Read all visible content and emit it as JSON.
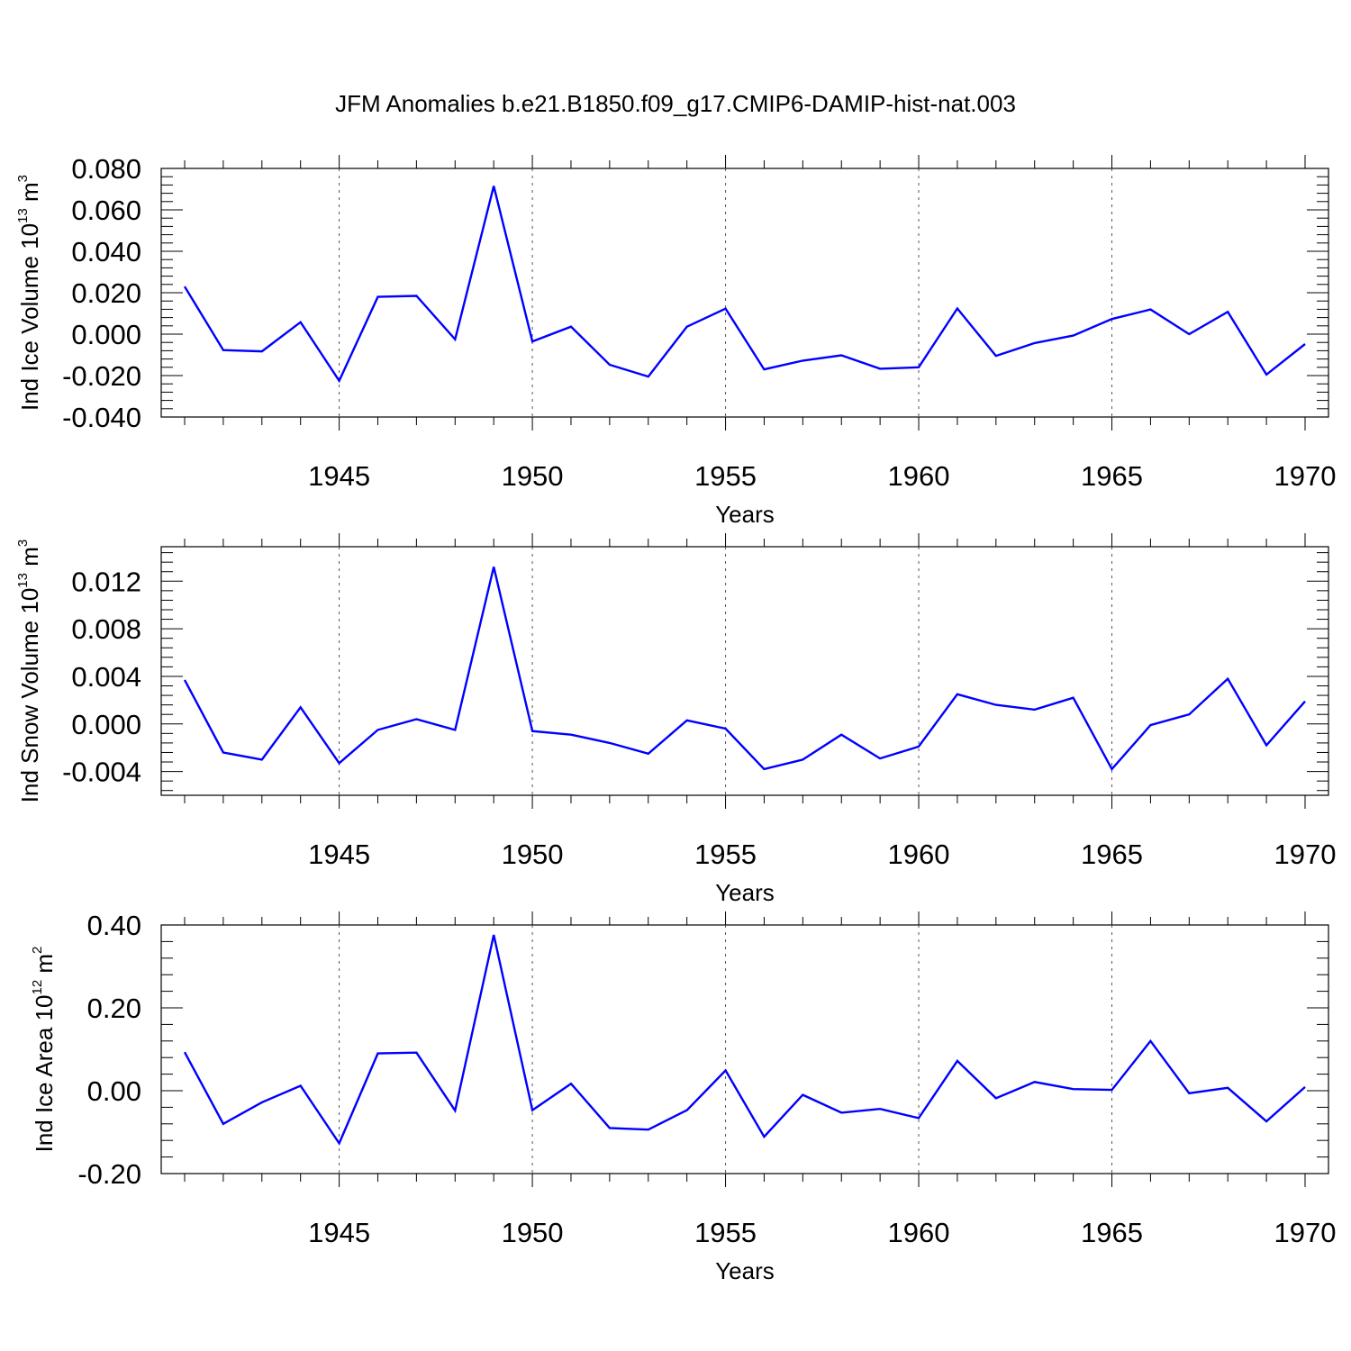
{
  "chart_data": [
    {
      "type": "line",
      "title": "JFM Anomalies b.e21.B1850.f09_g17.CMIP6-DAMIP-hist-nat.003",
      "ylabel": "Ind Ice Volume",
      "ylabel_unit_base": "10",
      "ylabel_unit_exp": "13",
      "ylabel_unit_suffix": "m",
      "ylabel_unit_suffix_exp": "3",
      "xlabel": "Years",
      "xlim": [
        1941,
        1970
      ],
      "ylim": [
        -0.04,
        0.08
      ],
      "yticks": [
        -0.04,
        -0.02,
        0.0,
        0.02,
        0.04,
        0.06,
        0.08
      ],
      "ytick_labels": [
        "-0.040",
        "-0.020",
        "0.000",
        "0.020",
        "0.040",
        "0.060",
        "0.080"
      ],
      "xticks": [
        1945,
        1950,
        1955,
        1960,
        1965,
        1970
      ],
      "xtick_labels": [
        "1945",
        "1950",
        "1955",
        "1960",
        "1965",
        "1970"
      ],
      "grid": "dashed vertical at major x ticks",
      "color": "#0000ff",
      "x": [
        1941,
        1942,
        1943,
        1944,
        1945,
        1946,
        1947,
        1948,
        1949,
        1950,
        1951,
        1952,
        1953,
        1954,
        1955,
        1956,
        1957,
        1958,
        1959,
        1960,
        1961,
        1962,
        1963,
        1964,
        1965,
        1966,
        1967,
        1968,
        1969,
        1970
      ],
      "y": [
        0.023,
        -0.0077,
        -0.0083,
        0.0058,
        -0.0225,
        0.018,
        0.0185,
        -0.0025,
        0.0715,
        -0.0035,
        0.0036,
        -0.0148,
        -0.0205,
        0.0036,
        0.0123,
        -0.017,
        -0.0128,
        -0.0102,
        -0.0167,
        -0.016,
        0.0124,
        -0.0105,
        -0.0043,
        -0.0007,
        0.0073,
        0.0119,
        0.0,
        0.0108,
        -0.0195,
        -0.0048
      ]
    },
    {
      "type": "line",
      "ylabel": "Ind Snow Volume",
      "ylabel_unit_base": "10",
      "ylabel_unit_exp": "13",
      "ylabel_unit_suffix": "m",
      "ylabel_unit_suffix_exp": "3",
      "xlabel": "Years",
      "xlim": [
        1941,
        1970
      ],
      "ylim": [
        -0.006,
        0.0149
      ],
      "yticks": [
        -0.004,
        0.0,
        0.004,
        0.008,
        0.012
      ],
      "ytick_labels": [
        "-0.004",
        "0.000",
        "0.004",
        "0.008",
        "0.012"
      ],
      "xticks": [
        1945,
        1950,
        1955,
        1960,
        1965,
        1970
      ],
      "xtick_labels": [
        "1945",
        "1950",
        "1955",
        "1960",
        "1965",
        "1970"
      ],
      "grid": "dashed vertical at major x ticks",
      "color": "#0000ff",
      "x": [
        1941,
        1942,
        1943,
        1944,
        1945,
        1946,
        1947,
        1948,
        1949,
        1950,
        1951,
        1952,
        1953,
        1954,
        1955,
        1956,
        1957,
        1958,
        1959,
        1960,
        1961,
        1962,
        1963,
        1964,
        1965,
        1966,
        1967,
        1968,
        1969,
        1970
      ],
      "y": [
        0.0037,
        -0.0024,
        -0.003,
        0.0014,
        -0.0033,
        -0.0005,
        0.0004,
        -0.0005,
        0.0132,
        -0.0006,
        -0.0009,
        -0.0016,
        -0.0025,
        0.0003,
        -0.0004,
        -0.0038,
        -0.003,
        -0.0009,
        -0.0029,
        -0.0019,
        0.0025,
        0.0016,
        0.0012,
        0.0022,
        -0.0038,
        -0.0001,
        0.0008,
        0.0038,
        -0.0018,
        0.0019
      ]
    },
    {
      "type": "line",
      "ylabel": "Ind Ice Area",
      "ylabel_unit_base": "10",
      "ylabel_unit_exp": "12",
      "ylabel_unit_suffix": "m",
      "ylabel_unit_suffix_exp": "2",
      "xlabel": "Years",
      "xlim": [
        1941,
        1970
      ],
      "ylim": [
        -0.2,
        0.4
      ],
      "yticks": [
        -0.2,
        0.0,
        0.2,
        0.4
      ],
      "ytick_labels": [
        "-0.20",
        "0.00",
        "0.20",
        "0.40"
      ],
      "xticks": [
        1945,
        1950,
        1955,
        1960,
        1965,
        1970
      ],
      "xtick_labels": [
        "1945",
        "1950",
        "1955",
        "1960",
        "1965",
        "1970"
      ],
      "grid": "dashed vertical at major x ticks",
      "color": "#0000ff",
      "x": [
        1941,
        1942,
        1943,
        1944,
        1945,
        1946,
        1947,
        1948,
        1949,
        1950,
        1951,
        1952,
        1953,
        1954,
        1955,
        1956,
        1957,
        1958,
        1959,
        1960,
        1961,
        1962,
        1963,
        1964,
        1965,
        1966,
        1967,
        1968,
        1969,
        1970
      ],
      "y": [
        0.093,
        -0.08,
        -0.028,
        0.012,
        -0.127,
        0.09,
        0.092,
        -0.048,
        0.376,
        -0.047,
        0.017,
        -0.09,
        -0.094,
        -0.047,
        0.049,
        -0.111,
        -0.01,
        -0.053,
        -0.044,
        -0.066,
        0.072,
        -0.018,
        0.021,
        0.004,
        0.002,
        0.12,
        -0.006,
        0.007,
        -0.074,
        0.009
      ]
    }
  ]
}
